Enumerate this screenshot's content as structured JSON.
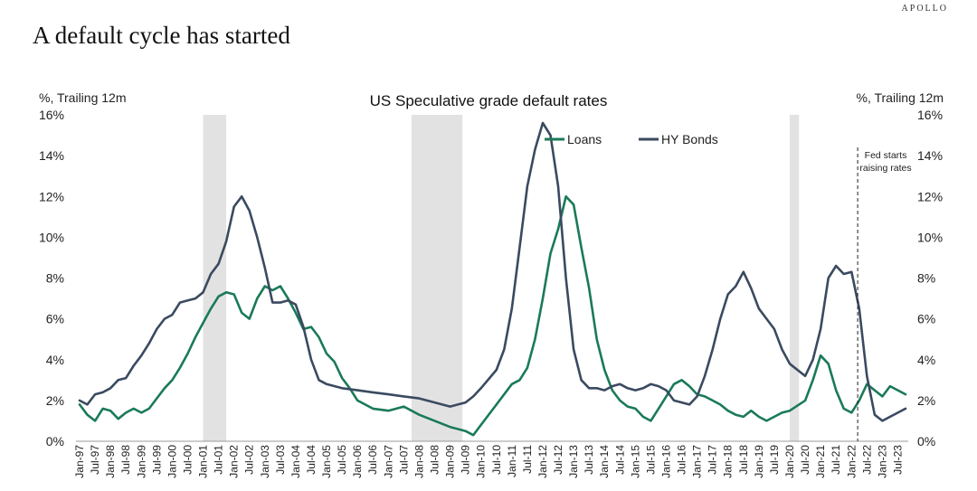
{
  "header": {
    "brand": "APOLLO",
    "title": "A default cycle has started"
  },
  "colors": {
    "loans": "#1a7a58",
    "hy_bonds": "#3a4a60",
    "recession": "#e2e2e2"
  },
  "chart_data": {
    "type": "line",
    "title": "US Speculative grade default rates",
    "ylabel_left": "%, Trailing 12m",
    "ylabel_right": "%, Trailing 12m",
    "ylim": [
      0,
      16
    ],
    "yticks": [
      "0%",
      "2%",
      "4%",
      "6%",
      "8%",
      "10%",
      "12%",
      "14%",
      "16%"
    ],
    "xlim": [
      1997.0,
      2023.75
    ],
    "xticks": [
      "Jan-97",
      "Jul-97",
      "Jan-98",
      "Jul-98",
      "Jan-99",
      "Jul-99",
      "Jan-00",
      "Jul-00",
      "Jan-01",
      "Jul-01",
      "Jan-02",
      "Jul-02",
      "Jan-03",
      "Jul-03",
      "Jan-04",
      "Jul-04",
      "Jan-05",
      "Jul-05",
      "Jan-06",
      "Jul-06",
      "Jan-07",
      "Jul-07",
      "Jan-08",
      "Jul-08",
      "Jan-09",
      "Jul-09",
      "Jan-10",
      "Jul-10",
      "Jan-11",
      "Jul-11",
      "Jan-12",
      "Jul-12",
      "Jan-13",
      "Jul-13",
      "Jan-14",
      "Jul-14",
      "Jan-15",
      "Jul-15",
      "Jan-16",
      "Jul-16",
      "Jan-17",
      "Jul-17",
      "Jan-18",
      "Jul-18",
      "Jan-19",
      "Jul-19",
      "Jan-20",
      "Jul-20",
      "Jan-21",
      "Jul-21",
      "Jan-22",
      "Jul-22",
      "Jan-23",
      "Jul-23"
    ],
    "recessions": [
      [
        2001.0,
        2001.75
      ],
      [
        2007.75,
        2009.4
      ],
      [
        2020.0,
        2020.3
      ]
    ],
    "annotation": {
      "x": 2022.2,
      "lines": [
        "Fed starts",
        "raising rates"
      ]
    },
    "legend": [
      "Loans",
      "HY Bonds"
    ],
    "series": [
      {
        "name": "Loans",
        "points": [
          [
            1997.0,
            1.8
          ],
          [
            1997.25,
            1.3
          ],
          [
            1997.5,
            1.0
          ],
          [
            1997.75,
            1.6
          ],
          [
            1998.0,
            1.5
          ],
          [
            1998.25,
            1.1
          ],
          [
            1998.5,
            1.4
          ],
          [
            1998.75,
            1.6
          ],
          [
            1999.0,
            1.4
          ],
          [
            1999.25,
            1.6
          ],
          [
            1999.5,
            2.1
          ],
          [
            1999.75,
            2.6
          ],
          [
            2000.0,
            3.0
          ],
          [
            2000.25,
            3.6
          ],
          [
            2000.5,
            4.3
          ],
          [
            2000.75,
            5.1
          ],
          [
            2001.0,
            5.8
          ],
          [
            2001.25,
            6.5
          ],
          [
            2001.5,
            7.1
          ],
          [
            2001.75,
            7.3
          ],
          [
            2002.0,
            7.2
          ],
          [
            2002.25,
            6.3
          ],
          [
            2002.5,
            6.0
          ],
          [
            2002.75,
            7.0
          ],
          [
            2003.0,
            7.6
          ],
          [
            2003.25,
            7.4
          ],
          [
            2003.5,
            7.6
          ],
          [
            2003.75,
            7.0
          ],
          [
            2004.0,
            6.3
          ],
          [
            2004.25,
            5.5
          ],
          [
            2004.5,
            5.6
          ],
          [
            2004.75,
            5.1
          ],
          [
            2005.0,
            4.3
          ],
          [
            2005.25,
            3.9
          ],
          [
            2005.5,
            3.1
          ],
          [
            2005.75,
            2.6
          ],
          [
            2006.0,
            2.0
          ],
          [
            2006.5,
            1.6
          ],
          [
            2007.0,
            1.5
          ],
          [
            2007.5,
            1.7
          ],
          [
            2008.0,
            1.3
          ],
          [
            2008.5,
            1.0
          ],
          [
            2009.0,
            0.7
          ],
          [
            2009.5,
            0.5
          ],
          [
            2009.75,
            0.3
          ],
          [
            2010.0,
            0.8
          ],
          [
            2010.5,
            1.8
          ],
          [
            2011.0,
            2.8
          ],
          [
            2011.25,
            3.0
          ],
          [
            2011.5,
            3.6
          ],
          [
            2011.75,
            5.0
          ],
          [
            2012.0,
            7.0
          ],
          [
            2012.25,
            9.2
          ],
          [
            2012.5,
            10.4
          ],
          [
            2012.75,
            12.0
          ],
          [
            2013.0,
            11.6
          ],
          [
            2013.25,
            9.5
          ],
          [
            2013.5,
            7.5
          ],
          [
            2013.75,
            5.0
          ],
          [
            2014.0,
            3.5
          ],
          [
            2014.25,
            2.5
          ],
          [
            2014.5,
            2.0
          ],
          [
            2014.75,
            1.7
          ],
          [
            2015.0,
            1.6
          ],
          [
            2015.25,
            1.2
          ],
          [
            2015.5,
            1.0
          ],
          [
            2015.75,
            1.6
          ],
          [
            2016.0,
            2.2
          ],
          [
            2016.25,
            2.8
          ],
          [
            2016.5,
            3.0
          ],
          [
            2016.75,
            2.7
          ],
          [
            2017.0,
            2.3
          ],
          [
            2017.25,
            2.2
          ],
          [
            2017.5,
            2.0
          ],
          [
            2017.75,
            1.8
          ],
          [
            2018.0,
            1.5
          ],
          [
            2018.25,
            1.3
          ],
          [
            2018.5,
            1.2
          ],
          [
            2018.75,
            1.5
          ],
          [
            2019.0,
            1.2
          ],
          [
            2019.25,
            1.0
          ],
          [
            2019.5,
            1.2
          ],
          [
            2019.75,
            1.4
          ],
          [
            2020.0,
            1.5
          ],
          [
            2020.5,
            2.0
          ],
          [
            2020.75,
            3.0
          ],
          [
            2021.0,
            4.2
          ],
          [
            2021.25,
            3.8
          ],
          [
            2021.5,
            2.5
          ],
          [
            2021.75,
            1.6
          ],
          [
            2022.0,
            1.4
          ],
          [
            2022.25,
            2.0
          ],
          [
            2022.5,
            2.8
          ],
          [
            2022.75,
            2.5
          ],
          [
            2023.0,
            2.2
          ],
          [
            2023.25,
            2.7
          ],
          [
            2023.5,
            2.5
          ],
          [
            2023.75,
            2.3
          ]
        ]
      },
      {
        "name": "HY Bonds",
        "points": [
          [
            1997.0,
            2.0
          ],
          [
            1997.25,
            1.8
          ],
          [
            1997.5,
            2.3
          ],
          [
            1997.75,
            2.4
          ],
          [
            1998.0,
            2.6
          ],
          [
            1998.25,
            3.0
          ],
          [
            1998.5,
            3.1
          ],
          [
            1998.75,
            3.7
          ],
          [
            1999.0,
            4.2
          ],
          [
            1999.25,
            4.8
          ],
          [
            1999.5,
            5.5
          ],
          [
            1999.75,
            6.0
          ],
          [
            2000.0,
            6.2
          ],
          [
            2000.25,
            6.8
          ],
          [
            2000.5,
            6.9
          ],
          [
            2000.75,
            7.0
          ],
          [
            2001.0,
            7.3
          ],
          [
            2001.25,
            8.2
          ],
          [
            2001.5,
            8.7
          ],
          [
            2001.75,
            9.8
          ],
          [
            2002.0,
            11.5
          ],
          [
            2002.25,
            12.0
          ],
          [
            2002.5,
            11.3
          ],
          [
            2002.75,
            10.0
          ],
          [
            2003.0,
            8.5
          ],
          [
            2003.25,
            6.8
          ],
          [
            2003.5,
            6.8
          ],
          [
            2003.75,
            6.9
          ],
          [
            2004.0,
            6.7
          ],
          [
            2004.25,
            5.6
          ],
          [
            2004.5,
            4.0
          ],
          [
            2004.75,
            3.0
          ],
          [
            2005.0,
            2.8
          ],
          [
            2005.5,
            2.6
          ],
          [
            2006.0,
            2.5
          ],
          [
            2006.5,
            2.4
          ],
          [
            2007.0,
            2.3
          ],
          [
            2007.5,
            2.2
          ],
          [
            2008.0,
            2.1
          ],
          [
            2008.5,
            1.9
          ],
          [
            2009.0,
            1.7
          ],
          [
            2009.5,
            1.9
          ],
          [
            2009.75,
            2.2
          ],
          [
            2010.0,
            2.6
          ],
          [
            2010.5,
            3.5
          ],
          [
            2010.75,
            4.5
          ],
          [
            2011.0,
            6.5
          ],
          [
            2011.25,
            9.5
          ],
          [
            2011.5,
            12.5
          ],
          [
            2011.75,
            14.3
          ],
          [
            2012.0,
            15.6
          ],
          [
            2012.25,
            15.0
          ],
          [
            2012.5,
            12.5
          ],
          [
            2012.75,
            8.0
          ],
          [
            2013.0,
            4.5
          ],
          [
            2013.25,
            3.0
          ],
          [
            2013.5,
            2.6
          ],
          [
            2013.75,
            2.6
          ],
          [
            2014.0,
            2.5
          ],
          [
            2014.25,
            2.7
          ],
          [
            2014.5,
            2.8
          ],
          [
            2014.75,
            2.6
          ],
          [
            2015.0,
            2.5
          ],
          [
            2015.25,
            2.6
          ],
          [
            2015.5,
            2.8
          ],
          [
            2015.75,
            2.7
          ],
          [
            2016.0,
            2.5
          ],
          [
            2016.25,
            2.0
          ],
          [
            2016.5,
            1.9
          ],
          [
            2016.75,
            1.8
          ],
          [
            2017.0,
            2.2
          ],
          [
            2017.25,
            3.2
          ],
          [
            2017.5,
            4.5
          ],
          [
            2017.75,
            6.0
          ],
          [
            2018.0,
            7.2
          ],
          [
            2018.25,
            7.6
          ],
          [
            2018.5,
            8.3
          ],
          [
            2018.75,
            7.5
          ],
          [
            2019.0,
            6.5
          ],
          [
            2019.25,
            6.0
          ],
          [
            2019.5,
            5.5
          ],
          [
            2019.75,
            4.5
          ],
          [
            2020.0,
            3.8
          ],
          [
            2020.5,
            3.2
          ],
          [
            2020.75,
            4.0
          ],
          [
            2021.0,
            5.5
          ],
          [
            2021.25,
            8.0
          ],
          [
            2021.5,
            8.6
          ],
          [
            2021.75,
            8.2
          ],
          [
            2022.0,
            8.3
          ],
          [
            2022.25,
            6.5
          ],
          [
            2022.5,
            3.2
          ],
          [
            2022.75,
            1.3
          ],
          [
            2023.0,
            1.0
          ],
          [
            2023.25,
            1.2
          ],
          [
            2023.5,
            1.4
          ],
          [
            2023.75,
            1.6
          ]
        ]
      }
    ]
  }
}
